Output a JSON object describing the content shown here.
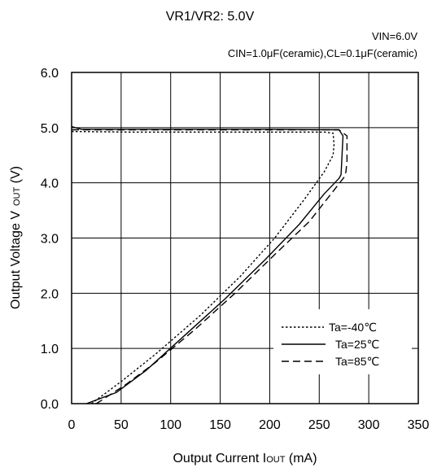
{
  "chart_data": {
    "type": "line",
    "title": "VR1/VR2: 5.0V",
    "conditions": [
      "VIN=6.0V",
      "CIN=1.0μF(ceramic),CL=0.1μF(ceramic)"
    ],
    "xlabel": "Output Current I",
    "xlabel_sub": "OUT",
    "xlabel_unit": " (mA)",
    "ylabel": "Output Voltage V",
    "ylabel_sub": "OUT",
    "ylabel_unit": " (V)",
    "xlim": [
      0,
      350
    ],
    "ylim": [
      0.0,
      6.0
    ],
    "xticks": [
      0,
      50,
      100,
      150,
      200,
      250,
      300,
      350
    ],
    "xtick_labels": [
      "0",
      "50",
      "100",
      "150",
      "200",
      "250",
      "300",
      "350"
    ],
    "yticks": [
      0,
      1,
      2,
      3,
      4,
      5,
      6
    ],
    "ytick_labels": [
      "0.0",
      "1.0",
      "2.0",
      "3.0",
      "4.0",
      "5.0",
      "6.0"
    ],
    "grid": true,
    "legend_position": "bottom-right",
    "series": [
      {
        "name": "Ta=-40℃",
        "style": "dotted",
        "points": [
          [
            0,
            4.93
          ],
          [
            60,
            4.92
          ],
          [
            150,
            4.92
          ],
          [
            220,
            4.92
          ],
          [
            255,
            4.92
          ],
          [
            264,
            4.9
          ],
          [
            265,
            4.7
          ],
          [
            264,
            4.5
          ],
          [
            255,
            4.2
          ],
          [
            235,
            3.7
          ],
          [
            205,
            3.0
          ],
          [
            170,
            2.3
          ],
          [
            130,
            1.6
          ],
          [
            85,
            0.9
          ],
          [
            50,
            0.4
          ],
          [
            20,
            0.0
          ]
        ]
      },
      {
        "name": "Ta=25℃",
        "style": "solid",
        "points": [
          [
            0,
            5.02
          ],
          [
            10,
            4.97
          ],
          [
            100,
            4.97
          ],
          [
            200,
            4.97
          ],
          [
            270,
            4.96
          ],
          [
            274,
            4.85
          ],
          [
            273,
            4.5
          ],
          [
            272,
            4.15
          ],
          [
            270,
            4.08
          ],
          [
            255,
            3.8
          ],
          [
            230,
            3.25
          ],
          [
            195,
            2.6
          ],
          [
            155,
            1.9
          ],
          [
            115,
            1.25
          ],
          [
            75,
            0.6
          ],
          [
            45,
            0.2
          ],
          [
            15,
            0.0
          ]
        ]
      },
      {
        "name": "Ta=85℃",
        "style": "dashed",
        "points": [
          [
            0,
            4.96
          ],
          [
            100,
            4.96
          ],
          [
            200,
            4.96
          ],
          [
            270,
            4.96
          ],
          [
            278,
            4.85
          ],
          [
            278,
            4.4
          ],
          [
            277,
            4.2
          ],
          [
            275,
            4.1
          ],
          [
            262,
            3.8
          ],
          [
            240,
            3.3
          ],
          [
            205,
            2.7
          ],
          [
            165,
            2.0
          ],
          [
            125,
            1.35
          ],
          [
            85,
            0.75
          ],
          [
            55,
            0.35
          ],
          [
            25,
            0.0
          ]
        ]
      }
    ]
  }
}
